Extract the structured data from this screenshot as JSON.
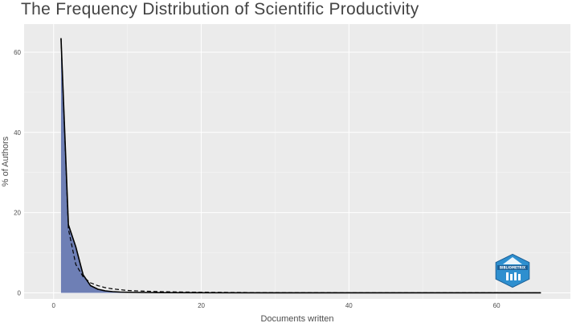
{
  "title": "The Frequency Distribution of Scientific Productivity",
  "logo": {
    "name": "bibliometrix-logo",
    "text": "BIBLIOMETRIX",
    "color": "#2e8fcf"
  },
  "colors": {
    "panel_background": "#ebebeb",
    "grid": "#ffffff",
    "area_fill": "#6e7fb5",
    "observed_line": "#000000",
    "theoretical_line": "#000000"
  },
  "chart_data": {
    "type": "area",
    "title": "The Frequency Distribution of Scientific Productivity",
    "xlabel": "Documents written",
    "ylabel": "% of Authors",
    "xlim": [
      -4,
      70
    ],
    "ylim": [
      -1.5,
      67
    ],
    "x_ticks": [
      0,
      20,
      40,
      60
    ],
    "y_ticks": [
      0,
      20,
      40,
      60
    ],
    "grid": true,
    "legend": "none",
    "series": [
      {
        "style": "area-solid",
        "x": [
          1,
          2,
          3,
          4,
          5,
          6,
          7,
          8,
          9,
          10,
          12,
          15,
          20,
          30,
          40,
          50,
          60,
          66
        ],
        "values": [
          63.5,
          17,
          11.5,
          4.5,
          1.8,
          0.9,
          0.5,
          0.3,
          0.2,
          0.15,
          0.1,
          0.05,
          0.03,
          0.02,
          0.02,
          0.02,
          0.02,
          0.02
        ]
      },
      {
        "style": "dashed",
        "x": [
          1,
          2,
          3,
          4,
          5,
          6,
          7,
          8,
          10,
          12,
          15,
          20,
          25,
          30,
          40,
          50,
          60,
          66
        ],
        "values": [
          63.5,
          15.9,
          7.1,
          4.0,
          2.5,
          1.8,
          1.3,
          1.0,
          0.6,
          0.45,
          0.28,
          0.16,
          0.1,
          0.07,
          0.04,
          0.03,
          0.02,
          0.015
        ]
      }
    ]
  }
}
